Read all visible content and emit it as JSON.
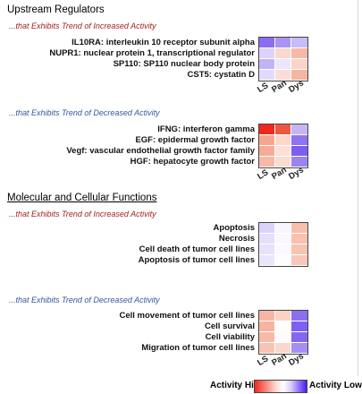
{
  "sections": [
    {
      "title": "Upstream Regulators",
      "groups": [
        {
          "subtitle": "...that Exhibits Trend of Increased Activity",
          "rows": [
            {
              "label": "IL10RA: interleukin 10 receptor subunit alpha",
              "colors": [
                "#8a6df0",
                "#a993f3",
                "#c9baf8"
              ]
            },
            {
              "label": "NUPR1: nuclear protein 1, transcriptional regulator",
              "colors": [
                "#ddd2fa",
                "#fad8ce",
                "#f6b9a8"
              ]
            },
            {
              "label": "SP110: SP110 nuclear body protein",
              "colors": [
                "#c2b3f6",
                "#ece6fc",
                "#fbd4c8"
              ]
            },
            {
              "label": "CST5: cystatin D",
              "colors": [
                "#e2dafa",
                "#faded5",
                "#f5b5a3"
              ]
            }
          ]
        },
        {
          "subtitle": "...that Exhibits Trend of Decreased Activity",
          "rows": [
            {
              "label": "IFNG: interferon gamma",
              "colors": [
                "#f0281e",
                "#f1553f",
                "#c4b6f6"
              ]
            },
            {
              "label": "EGF: epidermal growth factor",
              "colors": [
                "#f7a58f",
                "#fbd7cc",
                "#8f73f0"
              ]
            },
            {
              "label": "Vegf: vascular endothelial growth factor family",
              "colors": [
                "#f5ab96",
                "#fce0d6",
                "#7c5ef0"
              ]
            },
            {
              "label": "HGF: hepatocyte growth factor",
              "colors": [
                "#f8b8a5",
                "#fcdcd1",
                "#9b83f2"
              ]
            }
          ]
        }
      ]
    },
    {
      "title": "Molecular and Cellular Functions",
      "groups": [
        {
          "subtitle": "...that Exhibits Trend of Increased Activity",
          "rows": [
            {
              "label": "Apoptosis",
              "colors": [
                "#ddd2fa",
                "#f7f5fe",
                "#f8bfae"
              ]
            },
            {
              "label": "Necrosis",
              "colors": [
                "#e6defb",
                "#faf8fe",
                "#f8c1b0"
              ]
            },
            {
              "label": "Cell death of tumor cell lines",
              "colors": [
                "#e8e1fb",
                "#fbf9fe",
                "#f8c3b2"
              ]
            },
            {
              "label": "Apoptosis of tumor cell lines",
              "colors": [
                "#ebe5fc",
                "#fdfcff",
                "#f9c8b8"
              ]
            }
          ]
        },
        {
          "subtitle": "...that Exhibits Trend of Decreased Activity",
          "rows": [
            {
              "label": "Cell movement of tumor cell lines",
              "colors": [
                "#f7b6a3",
                "#fbd3c6",
                "#8c70f0"
              ]
            },
            {
              "label": "Cell survival",
              "colors": [
                "#f7b3a0",
                "#fffdfd",
                "#7e60f0"
              ]
            },
            {
              "label": "Cell viability",
              "colors": [
                "#f8baa7",
                "#fefbfa",
                "#8467f0"
              ]
            },
            {
              "label": "Migration of tumor cell lines",
              "colors": [
                "#f9c3b3",
                "#fbd7cb",
                "#a48ef3"
              ]
            }
          ]
        }
      ]
    }
  ],
  "columns": [
    "LS",
    "Pan",
    "Dys"
  ],
  "legend": {
    "hi_label": "Activity Hi",
    "low_label": "Activity Low",
    "hi_color": "#f0281e",
    "low_color": "#4b1cf0"
  }
}
